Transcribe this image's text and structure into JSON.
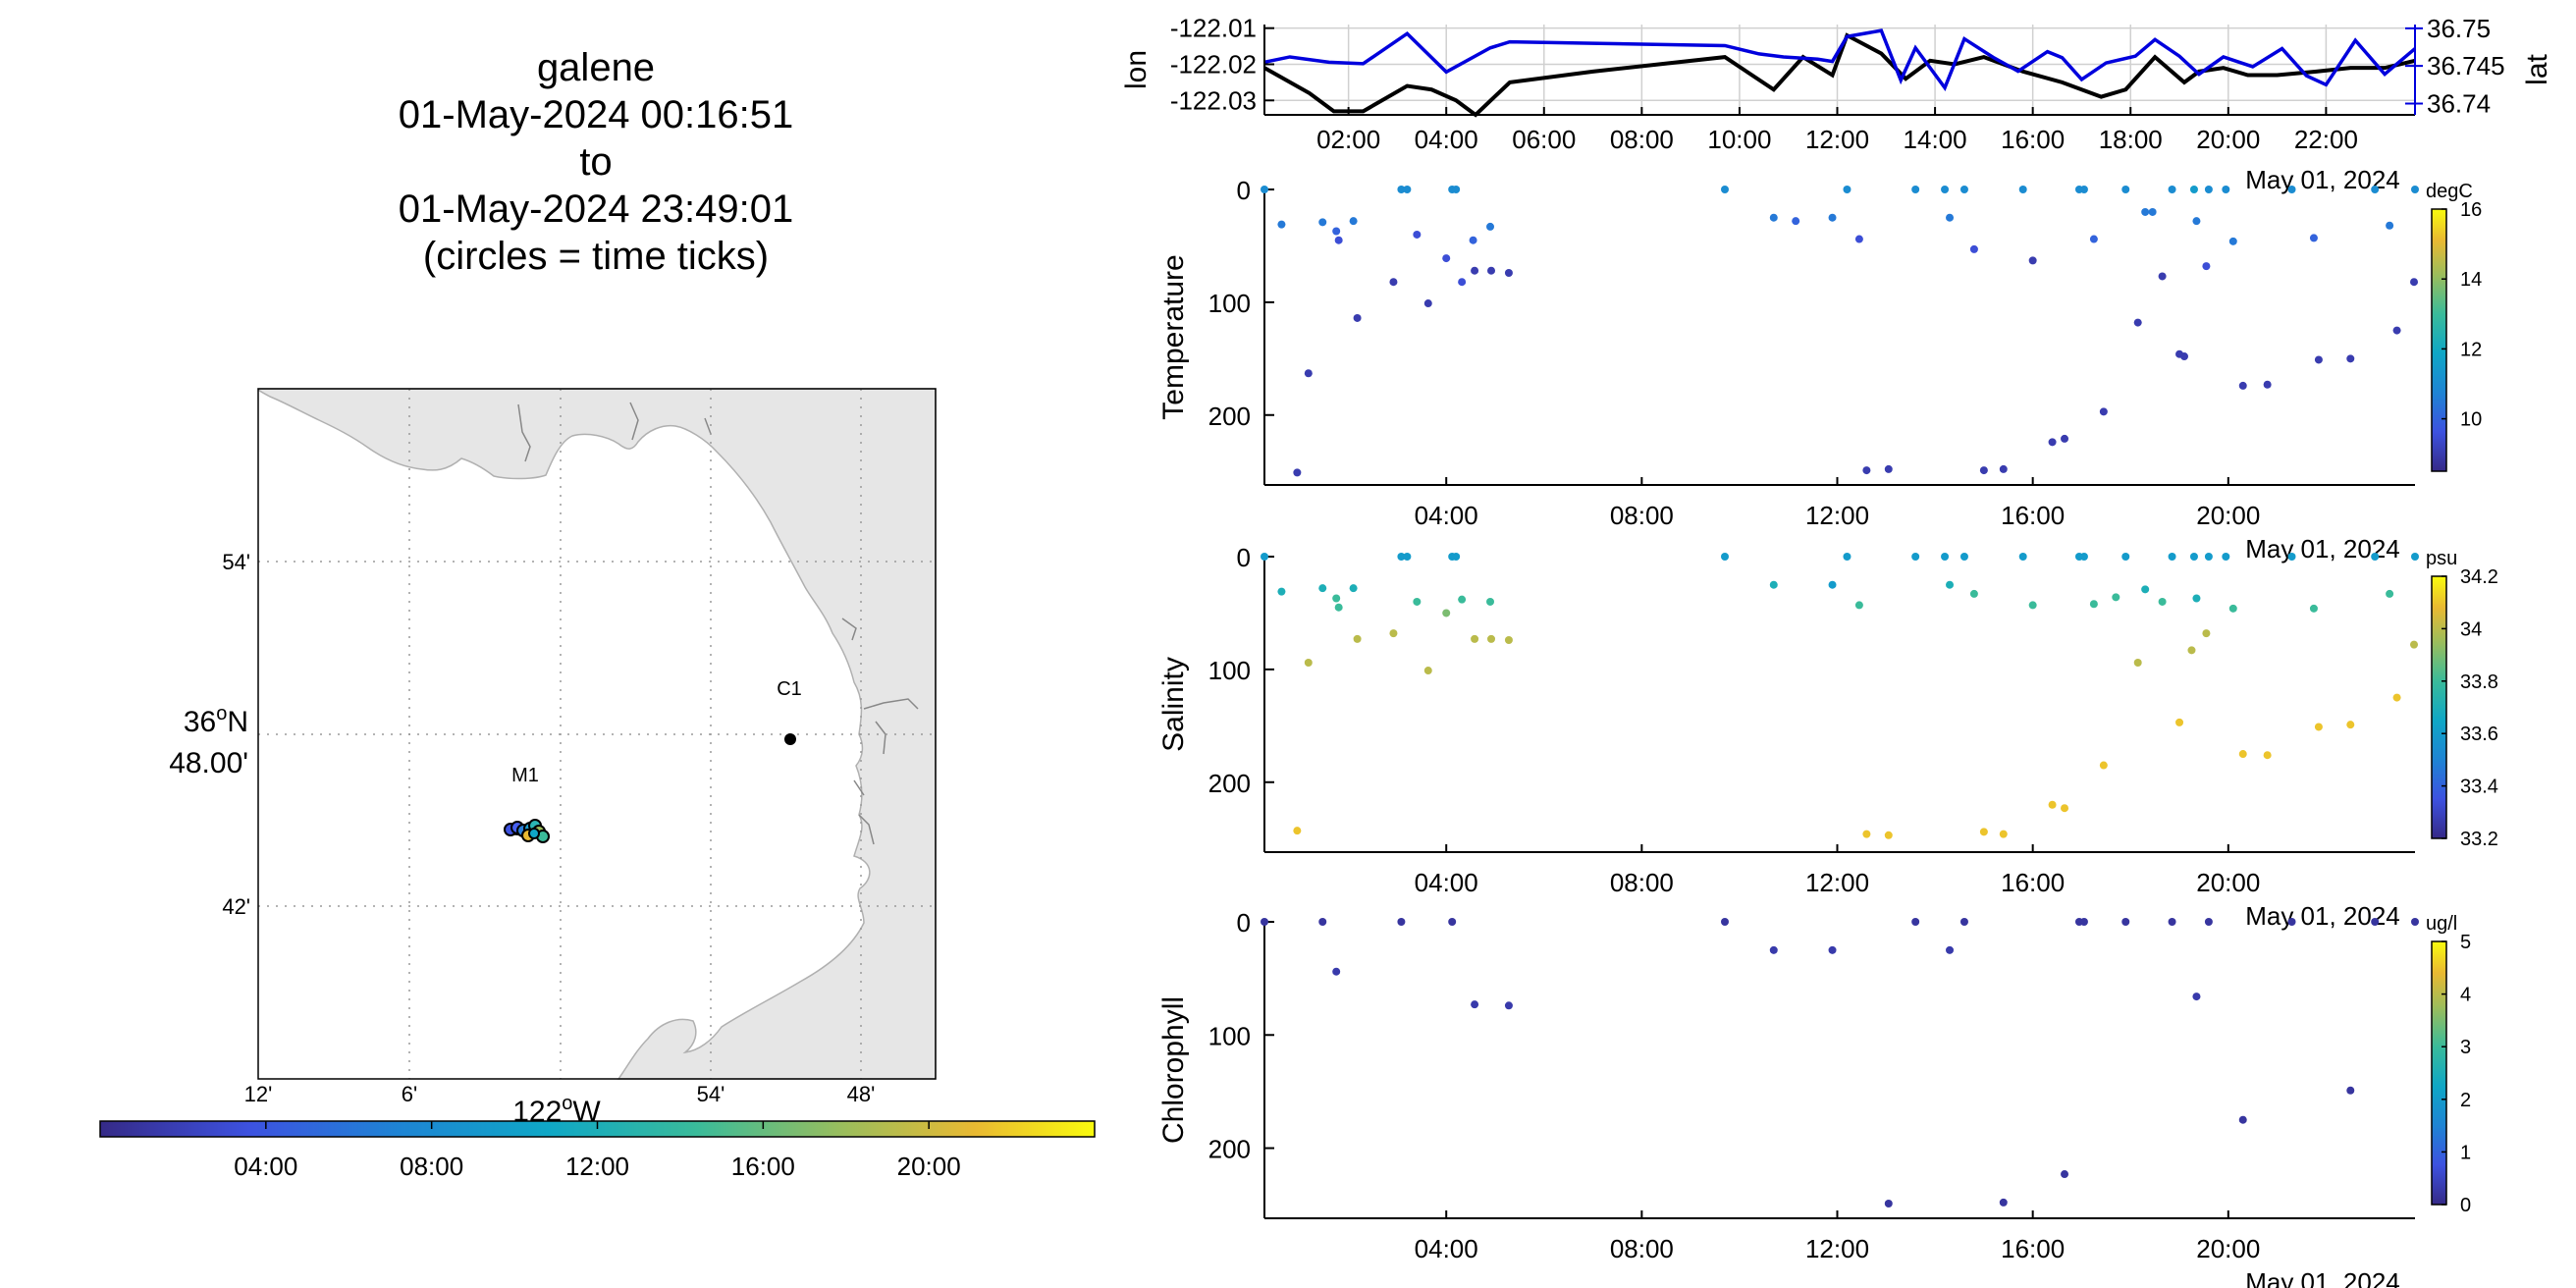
{
  "title": {
    "lines": [
      "galene",
      "01-May-2024 00:16:51",
      "to",
      "01-May-2024 23:49:01",
      "(circles = time ticks)"
    ]
  },
  "map": {
    "land_color": "#e6e6e6",
    "lat_ticks": [
      "54'",
      "48.00'",
      "42'"
    ],
    "lat_degree": "36",
    "lat_suffix": "N",
    "lon_ticks": [
      "12'",
      "6'",
      "54'",
      "48'"
    ],
    "lon_degree": "122",
    "lon_suffix": "W",
    "stations": [
      {
        "name": "C1",
        "lon": -121.901,
        "lat": 36.797
      },
      {
        "name": "M1",
        "lon": -122.021,
        "lat": 36.745
      }
    ],
    "time_colorbar": {
      "ticks": [
        "04:00",
        "08:00",
        "12:00",
        "16:00",
        "20:00"
      ],
      "tick_hours": [
        4,
        8,
        12,
        16,
        20
      ]
    }
  },
  "chart_data": [
    {
      "type": "line",
      "name": "lonlat",
      "x_unit": "hours since 01-May-2024 00:00",
      "xlim": [
        0.28,
        23.82
      ],
      "x_tick_labels": [
        "02:00",
        "04:00",
        "06:00",
        "08:00",
        "10:00",
        "12:00",
        "14:00",
        "16:00",
        "18:00",
        "20:00",
        "22:00"
      ],
      "x_tick_hours": [
        2,
        4,
        6,
        8,
        10,
        12,
        14,
        16,
        18,
        20,
        22
      ],
      "date_label": "May 01, 2024",
      "ylabel_left": "lon",
      "ylabel_right": "lat",
      "ylim_left": [
        -122.034,
        -122.009
      ],
      "yticks_left": [
        "-122.01",
        "-122.02",
        "-122.03"
      ],
      "ytick_values_left": [
        -122.01,
        -122.02,
        -122.03
      ],
      "ylim_right": [
        36.7385,
        36.7505
      ],
      "yticks_right": [
        "36.75",
        "36.745",
        "36.74"
      ],
      "ytick_values_right": [
        36.75,
        36.745,
        36.74
      ],
      "right_color": "#0000dd",
      "series": [
        {
          "name": "lon",
          "color": "#000000",
          "x": [
            0.28,
            1.2,
            1.7,
            2.3,
            3.2,
            3.7,
            4.2,
            4.6,
            5.3,
            7.0,
            9.7,
            10.7,
            11.3,
            11.9,
            12.2,
            12.9,
            13.4,
            13.9,
            14.4,
            15.0,
            15.8,
            16.6,
            17.4,
            17.9,
            18.5,
            19.1,
            19.4,
            19.9,
            20.4,
            21.0,
            21.8,
            22.5,
            23.2,
            23.82
          ],
          "y": [
            -122.021,
            -122.028,
            -122.033,
            -122.033,
            -122.026,
            -122.027,
            -122.03,
            -122.034,
            -122.025,
            -122.022,
            -122.018,
            -122.027,
            -122.018,
            -122.023,
            -122.012,
            -122.017,
            -122.024,
            -122.019,
            -122.02,
            -122.018,
            -122.022,
            -122.025,
            -122.029,
            -122.027,
            -122.018,
            -122.025,
            -122.022,
            -122.021,
            -122.023,
            -122.023,
            -122.022,
            -122.021,
            -122.021,
            -122.019
          ]
        },
        {
          "name": "lat",
          "color": "#0000dd",
          "x": [
            0.28,
            0.8,
            1.6,
            2.3,
            3.2,
            4.0,
            4.9,
            5.3,
            7.0,
            9.7,
            10.4,
            10.9,
            11.6,
            11.9,
            12.2,
            12.9,
            13.3,
            13.6,
            14.2,
            14.6,
            15.2,
            15.7,
            16.3,
            16.6,
            17.0,
            17.5,
            18.1,
            18.5,
            19.0,
            19.4,
            19.9,
            20.5,
            21.1,
            21.6,
            22.0,
            22.6,
            23.2,
            23.82
          ],
          "y": [
            36.7455,
            36.7462,
            36.7455,
            36.7453,
            36.7493,
            36.7442,
            36.7474,
            36.7482,
            36.748,
            36.7477,
            36.7466,
            36.7462,
            36.7459,
            36.7456,
            36.7489,
            36.7497,
            36.7431,
            36.7474,
            36.7421,
            36.7486,
            36.7461,
            36.7443,
            36.7469,
            36.7461,
            36.7432,
            36.7454,
            36.7463,
            36.7485,
            36.7463,
            36.7439,
            36.7462,
            36.7449,
            36.7473,
            36.7437,
            36.7425,
            36.7484,
            36.7439,
            36.7473
          ]
        }
      ]
    },
    {
      "type": "scatter",
      "name": "temperature",
      "ylabel": "Temperature",
      "units": "degC",
      "xlim": [
        0.28,
        23.82
      ],
      "ylim": [
        0,
        262
      ],
      "yreversed": true,
      "yticks": [
        0,
        100,
        200
      ],
      "x_tick_labels": [
        "04:00",
        "08:00",
        "12:00",
        "16:00",
        "20:00"
      ],
      "x_tick_hours": [
        4,
        8,
        12,
        16,
        20
      ],
      "date_label": "May 01, 2024",
      "clim": [
        8.5,
        16
      ],
      "cticks": [
        10,
        12,
        14,
        16
      ],
      "points": [
        [
          0.28,
          0,
          11
        ],
        [
          0.63,
          31,
          10.5
        ],
        [
          1.18,
          163,
          9
        ],
        [
          1.47,
          29,
          10.5
        ],
        [
          1.75,
          37,
          10
        ],
        [
          1.8,
          45,
          9.5
        ],
        [
          2.1,
          28,
          10.5
        ],
        [
          2.18,
          114,
          9
        ],
        [
          2.92,
          82,
          9
        ],
        [
          3.08,
          0,
          11
        ],
        [
          3.2,
          0,
          11
        ],
        [
          3.4,
          40,
          9.5
        ],
        [
          3.63,
          101,
          9
        ],
        [
          4.0,
          61,
          9.5
        ],
        [
          4.12,
          0,
          11
        ],
        [
          4.2,
          0,
          11
        ],
        [
          4.32,
          82,
          9.5
        ],
        [
          4.55,
          45,
          10
        ],
        [
          4.58,
          72,
          9
        ],
        [
          4.9,
          33,
          10.5
        ],
        [
          4.92,
          72,
          9
        ],
        [
          5.28,
          74,
          9
        ],
        [
          0.95,
          251,
          9
        ],
        [
          9.7,
          0,
          11
        ],
        [
          10.7,
          25,
          10.5
        ],
        [
          11.15,
          28,
          10
        ],
        [
          11.9,
          25,
          10.5
        ],
        [
          12.2,
          0,
          11
        ],
        [
          12.45,
          44,
          9.5
        ],
        [
          12.6,
          249,
          9
        ],
        [
          13.05,
          248,
          9
        ],
        [
          13.6,
          0,
          11
        ],
        [
          14.2,
          0,
          11
        ],
        [
          14.3,
          25,
          10.5
        ],
        [
          14.6,
          0,
          11
        ],
        [
          14.8,
          53,
          9.5
        ],
        [
          15.0,
          249,
          9
        ],
        [
          15.4,
          248,
          9
        ],
        [
          15.8,
          0,
          11
        ],
        [
          16.0,
          63,
          9
        ],
        [
          16.4,
          224,
          9
        ],
        [
          16.65,
          221,
          9
        ],
        [
          16.95,
          0,
          11
        ],
        [
          17.05,
          0,
          11
        ],
        [
          17.25,
          44,
          10
        ],
        [
          17.45,
          197,
          9
        ],
        [
          17.9,
          0,
          11
        ],
        [
          18.15,
          118,
          9
        ],
        [
          18.3,
          20,
          10.5
        ],
        [
          18.45,
          20,
          10.5
        ],
        [
          18.65,
          77,
          9
        ],
        [
          18.85,
          0,
          11
        ],
        [
          19.0,
          146,
          9
        ],
        [
          19.1,
          148,
          9
        ],
        [
          19.3,
          0,
          11.5
        ],
        [
          19.35,
          28,
          10.5
        ],
        [
          19.6,
          0,
          11
        ],
        [
          19.55,
          68,
          9.5
        ],
        [
          19.95,
          0,
          11
        ],
        [
          20.1,
          46,
          10.5
        ],
        [
          20.3,
          174,
          9
        ],
        [
          20.8,
          173,
          9
        ],
        [
          21.3,
          0,
          11
        ],
        [
          21.75,
          43,
          10
        ],
        [
          21.85,
          151,
          9
        ],
        [
          22.5,
          150,
          9
        ],
        [
          23.0,
          0,
          11
        ],
        [
          23.3,
          32,
          10.5
        ],
        [
          23.45,
          125,
          9
        ],
        [
          23.82,
          0,
          11
        ],
        [
          23.8,
          82,
          9
        ]
      ]
    },
    {
      "type": "scatter",
      "name": "salinity",
      "ylabel": "Salinity",
      "units": "psu",
      "xlim": [
        0.28,
        23.82
      ],
      "ylim": [
        0,
        262
      ],
      "yreversed": true,
      "yticks": [
        0,
        100,
        200
      ],
      "x_tick_labels": [
        "04:00",
        "08:00",
        "12:00",
        "16:00",
        "20:00"
      ],
      "x_tick_hours": [
        4,
        8,
        12,
        16,
        20
      ],
      "date_label": "May 01, 2024",
      "clim": [
        33.2,
        34.2
      ],
      "cticks": [
        33.2,
        33.4,
        33.6,
        33.8,
        34,
        34.2
      ],
      "points": [
        [
          0.28,
          0,
          33.6
        ],
        [
          0.63,
          31,
          33.7
        ],
        [
          1.18,
          94,
          34.0
        ],
        [
          1.47,
          28,
          33.7
        ],
        [
          1.75,
          37,
          33.8
        ],
        [
          1.8,
          45,
          33.8
        ],
        [
          2.1,
          28,
          33.7
        ],
        [
          2.18,
          73,
          34.0
        ],
        [
          2.92,
          68,
          34.0
        ],
        [
          3.08,
          0,
          33.6
        ],
        [
          3.2,
          0,
          33.6
        ],
        [
          3.4,
          40,
          33.8
        ],
        [
          3.63,
          101,
          34.0
        ],
        [
          4.0,
          50,
          33.9
        ],
        [
          4.12,
          0,
          33.6
        ],
        [
          4.2,
          0,
          33.6
        ],
        [
          4.32,
          38,
          33.8
        ],
        [
          4.58,
          73,
          34.0
        ],
        [
          4.9,
          40,
          33.8
        ],
        [
          4.92,
          73,
          34.0
        ],
        [
          5.28,
          74,
          34.0
        ],
        [
          0.95,
          243,
          34.1
        ],
        [
          9.7,
          0,
          33.6
        ],
        [
          10.7,
          25,
          33.7
        ],
        [
          11.9,
          25,
          33.6
        ],
        [
          12.2,
          0,
          33.6
        ],
        [
          12.45,
          43,
          33.8
        ],
        [
          12.6,
          246,
          34.1
        ],
        [
          13.05,
          247,
          34.1
        ],
        [
          13.6,
          0,
          33.6
        ],
        [
          14.2,
          0,
          33.6
        ],
        [
          14.3,
          25,
          33.7
        ],
        [
          14.6,
          0,
          33.6
        ],
        [
          14.8,
          33,
          33.8
        ],
        [
          15.0,
          244,
          34.1
        ],
        [
          15.4,
          246,
          34.1
        ],
        [
          15.8,
          0,
          33.6
        ],
        [
          16.0,
          43,
          33.8
        ],
        [
          16.4,
          220,
          34.1
        ],
        [
          16.65,
          223,
          34.1
        ],
        [
          16.95,
          0,
          33.6
        ],
        [
          17.05,
          0,
          33.6
        ],
        [
          17.25,
          42,
          33.8
        ],
        [
          17.45,
          185,
          34.1
        ],
        [
          17.9,
          0,
          33.6
        ],
        [
          18.15,
          94,
          34.0
        ],
        [
          18.3,
          29,
          33.7
        ],
        [
          18.65,
          40,
          33.8
        ],
        [
          18.85,
          0,
          33.6
        ],
        [
          19.0,
          147,
          34.1
        ],
        [
          19.3,
          0,
          33.6
        ],
        [
          19.35,
          37,
          33.7
        ],
        [
          19.6,
          0,
          33.6
        ],
        [
          19.55,
          68,
          34.0
        ],
        [
          19.95,
          0,
          33.6
        ],
        [
          20.1,
          46,
          33.8
        ],
        [
          20.3,
          175,
          34.1
        ],
        [
          20.8,
          176,
          34.1
        ],
        [
          21.3,
          0,
          33.6
        ],
        [
          21.75,
          46,
          33.8
        ],
        [
          21.85,
          151,
          34.1
        ],
        [
          22.5,
          149,
          34.1
        ],
        [
          23.0,
          0,
          33.6
        ],
        [
          23.3,
          33,
          33.8
        ],
        [
          23.45,
          125,
          34.1
        ],
        [
          23.82,
          0,
          33.6
        ],
        [
          23.8,
          78,
          34.0
        ],
        [
          19.25,
          83,
          34.0
        ],
        [
          17.7,
          36,
          33.8
        ]
      ]
    },
    {
      "type": "scatter",
      "name": "chlorophyll",
      "ylabel": "Chlorophyll",
      "units": "ug/l",
      "xlim": [
        0.28,
        23.82
      ],
      "ylim": [
        0,
        262
      ],
      "yreversed": true,
      "yticks": [
        0,
        100,
        200
      ],
      "x_tick_labels": [
        "04:00",
        "08:00",
        "12:00",
        "16:00",
        "20:00"
      ],
      "x_tick_hours": [
        4,
        8,
        12,
        16,
        20
      ],
      "date_label": "May 01, 2024",
      "clim": [
        0,
        5
      ],
      "cticks": [
        0,
        1,
        2,
        3,
        4,
        5
      ],
      "points": [
        [
          0.28,
          0,
          0.2
        ],
        [
          1.47,
          0,
          0.2
        ],
        [
          1.75,
          44,
          0.3
        ],
        [
          3.08,
          0,
          0.2
        ],
        [
          4.12,
          0,
          0.2
        ],
        [
          4.58,
          73,
          0.3
        ],
        [
          5.28,
          74,
          0.3
        ],
        [
          9.7,
          0,
          0.2
        ],
        [
          10.7,
          25,
          0.3
        ],
        [
          11.9,
          25,
          0.3
        ],
        [
          13.05,
          249,
          0.2
        ],
        [
          13.6,
          0,
          0.2
        ],
        [
          14.3,
          25,
          0.3
        ],
        [
          14.6,
          0,
          0.2
        ],
        [
          15.4,
          248,
          0.2
        ],
        [
          16.65,
          223,
          0.2
        ],
        [
          16.95,
          0,
          0.2
        ],
        [
          17.05,
          0,
          0.2
        ],
        [
          17.9,
          0,
          0.2
        ],
        [
          18.85,
          0,
          0.2
        ],
        [
          19.35,
          66,
          0.3
        ],
        [
          19.6,
          0,
          0.2
        ],
        [
          20.3,
          175,
          0.2
        ],
        [
          21.3,
          0,
          0.2
        ],
        [
          22.5,
          149,
          0.2
        ],
        [
          23.0,
          0,
          0.2
        ],
        [
          23.82,
          0,
          0.2
        ]
      ]
    }
  ]
}
